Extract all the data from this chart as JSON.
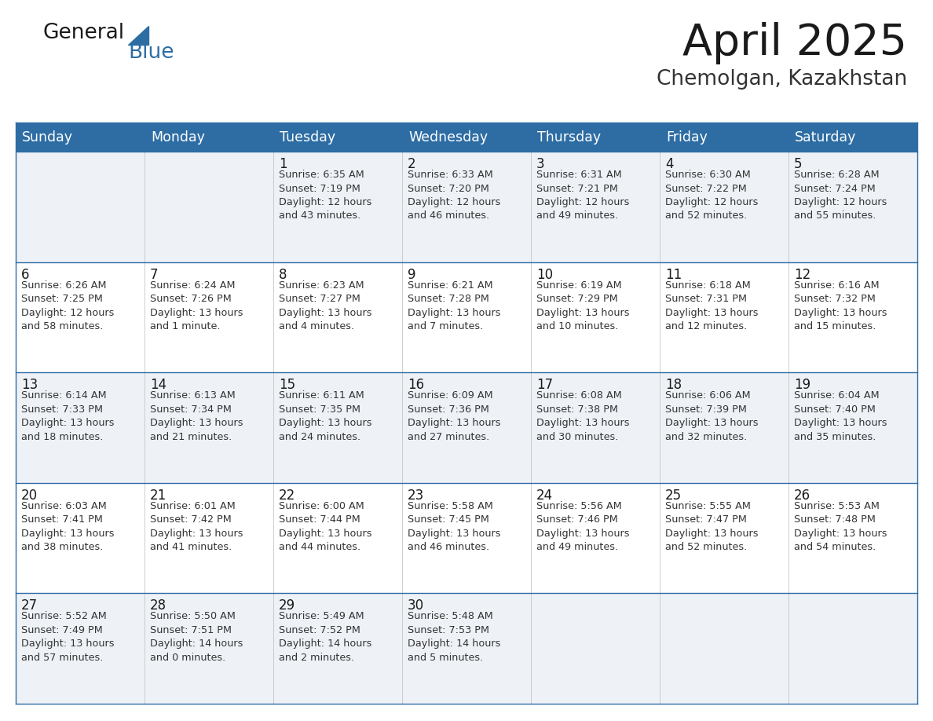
{
  "title": "April 2025",
  "subtitle": "Chemolgan, Kazakhstan",
  "days_of_week": [
    "Sunday",
    "Monday",
    "Tuesday",
    "Wednesday",
    "Thursday",
    "Friday",
    "Saturday"
  ],
  "header_bg": "#2e6da4",
  "header_text": "#ffffff",
  "cell_bg_odd": "#eef2f7",
  "cell_bg_even": "#ffffff",
  "row_line_color": "#2e6da4",
  "day_num_color": "#1a1a1a",
  "info_text_color": "#333333",
  "logo_general_color": "#1a1a1a",
  "logo_blue_color": "#2e6da4",
  "title_color": "#1a1a1a",
  "subtitle_color": "#333333",
  "calendar_data": [
    [
      {
        "day": "",
        "info": ""
      },
      {
        "day": "",
        "info": ""
      },
      {
        "day": "1",
        "info": "Sunrise: 6:35 AM\nSunset: 7:19 PM\nDaylight: 12 hours\nand 43 minutes."
      },
      {
        "day": "2",
        "info": "Sunrise: 6:33 AM\nSunset: 7:20 PM\nDaylight: 12 hours\nand 46 minutes."
      },
      {
        "day": "3",
        "info": "Sunrise: 6:31 AM\nSunset: 7:21 PM\nDaylight: 12 hours\nand 49 minutes."
      },
      {
        "day": "4",
        "info": "Sunrise: 6:30 AM\nSunset: 7:22 PM\nDaylight: 12 hours\nand 52 minutes."
      },
      {
        "day": "5",
        "info": "Sunrise: 6:28 AM\nSunset: 7:24 PM\nDaylight: 12 hours\nand 55 minutes."
      }
    ],
    [
      {
        "day": "6",
        "info": "Sunrise: 6:26 AM\nSunset: 7:25 PM\nDaylight: 12 hours\nand 58 minutes."
      },
      {
        "day": "7",
        "info": "Sunrise: 6:24 AM\nSunset: 7:26 PM\nDaylight: 13 hours\nand 1 minute."
      },
      {
        "day": "8",
        "info": "Sunrise: 6:23 AM\nSunset: 7:27 PM\nDaylight: 13 hours\nand 4 minutes."
      },
      {
        "day": "9",
        "info": "Sunrise: 6:21 AM\nSunset: 7:28 PM\nDaylight: 13 hours\nand 7 minutes."
      },
      {
        "day": "10",
        "info": "Sunrise: 6:19 AM\nSunset: 7:29 PM\nDaylight: 13 hours\nand 10 minutes."
      },
      {
        "day": "11",
        "info": "Sunrise: 6:18 AM\nSunset: 7:31 PM\nDaylight: 13 hours\nand 12 minutes."
      },
      {
        "day": "12",
        "info": "Sunrise: 6:16 AM\nSunset: 7:32 PM\nDaylight: 13 hours\nand 15 minutes."
      }
    ],
    [
      {
        "day": "13",
        "info": "Sunrise: 6:14 AM\nSunset: 7:33 PM\nDaylight: 13 hours\nand 18 minutes."
      },
      {
        "day": "14",
        "info": "Sunrise: 6:13 AM\nSunset: 7:34 PM\nDaylight: 13 hours\nand 21 minutes."
      },
      {
        "day": "15",
        "info": "Sunrise: 6:11 AM\nSunset: 7:35 PM\nDaylight: 13 hours\nand 24 minutes."
      },
      {
        "day": "16",
        "info": "Sunrise: 6:09 AM\nSunset: 7:36 PM\nDaylight: 13 hours\nand 27 minutes."
      },
      {
        "day": "17",
        "info": "Sunrise: 6:08 AM\nSunset: 7:38 PM\nDaylight: 13 hours\nand 30 minutes."
      },
      {
        "day": "18",
        "info": "Sunrise: 6:06 AM\nSunset: 7:39 PM\nDaylight: 13 hours\nand 32 minutes."
      },
      {
        "day": "19",
        "info": "Sunrise: 6:04 AM\nSunset: 7:40 PM\nDaylight: 13 hours\nand 35 minutes."
      }
    ],
    [
      {
        "day": "20",
        "info": "Sunrise: 6:03 AM\nSunset: 7:41 PM\nDaylight: 13 hours\nand 38 minutes."
      },
      {
        "day": "21",
        "info": "Sunrise: 6:01 AM\nSunset: 7:42 PM\nDaylight: 13 hours\nand 41 minutes."
      },
      {
        "day": "22",
        "info": "Sunrise: 6:00 AM\nSunset: 7:44 PM\nDaylight: 13 hours\nand 44 minutes."
      },
      {
        "day": "23",
        "info": "Sunrise: 5:58 AM\nSunset: 7:45 PM\nDaylight: 13 hours\nand 46 minutes."
      },
      {
        "day": "24",
        "info": "Sunrise: 5:56 AM\nSunset: 7:46 PM\nDaylight: 13 hours\nand 49 minutes."
      },
      {
        "day": "25",
        "info": "Sunrise: 5:55 AM\nSunset: 7:47 PM\nDaylight: 13 hours\nand 52 minutes."
      },
      {
        "day": "26",
        "info": "Sunrise: 5:53 AM\nSunset: 7:48 PM\nDaylight: 13 hours\nand 54 minutes."
      }
    ],
    [
      {
        "day": "27",
        "info": "Sunrise: 5:52 AM\nSunset: 7:49 PM\nDaylight: 13 hours\nand 57 minutes."
      },
      {
        "day": "28",
        "info": "Sunrise: 5:50 AM\nSunset: 7:51 PM\nDaylight: 14 hours\nand 0 minutes."
      },
      {
        "day": "29",
        "info": "Sunrise: 5:49 AM\nSunset: 7:52 PM\nDaylight: 14 hours\nand 2 minutes."
      },
      {
        "day": "30",
        "info": "Sunrise: 5:48 AM\nSunset: 7:53 PM\nDaylight: 14 hours\nand 5 minutes."
      },
      {
        "day": "",
        "info": ""
      },
      {
        "day": "",
        "info": ""
      },
      {
        "day": "",
        "info": ""
      }
    ]
  ]
}
